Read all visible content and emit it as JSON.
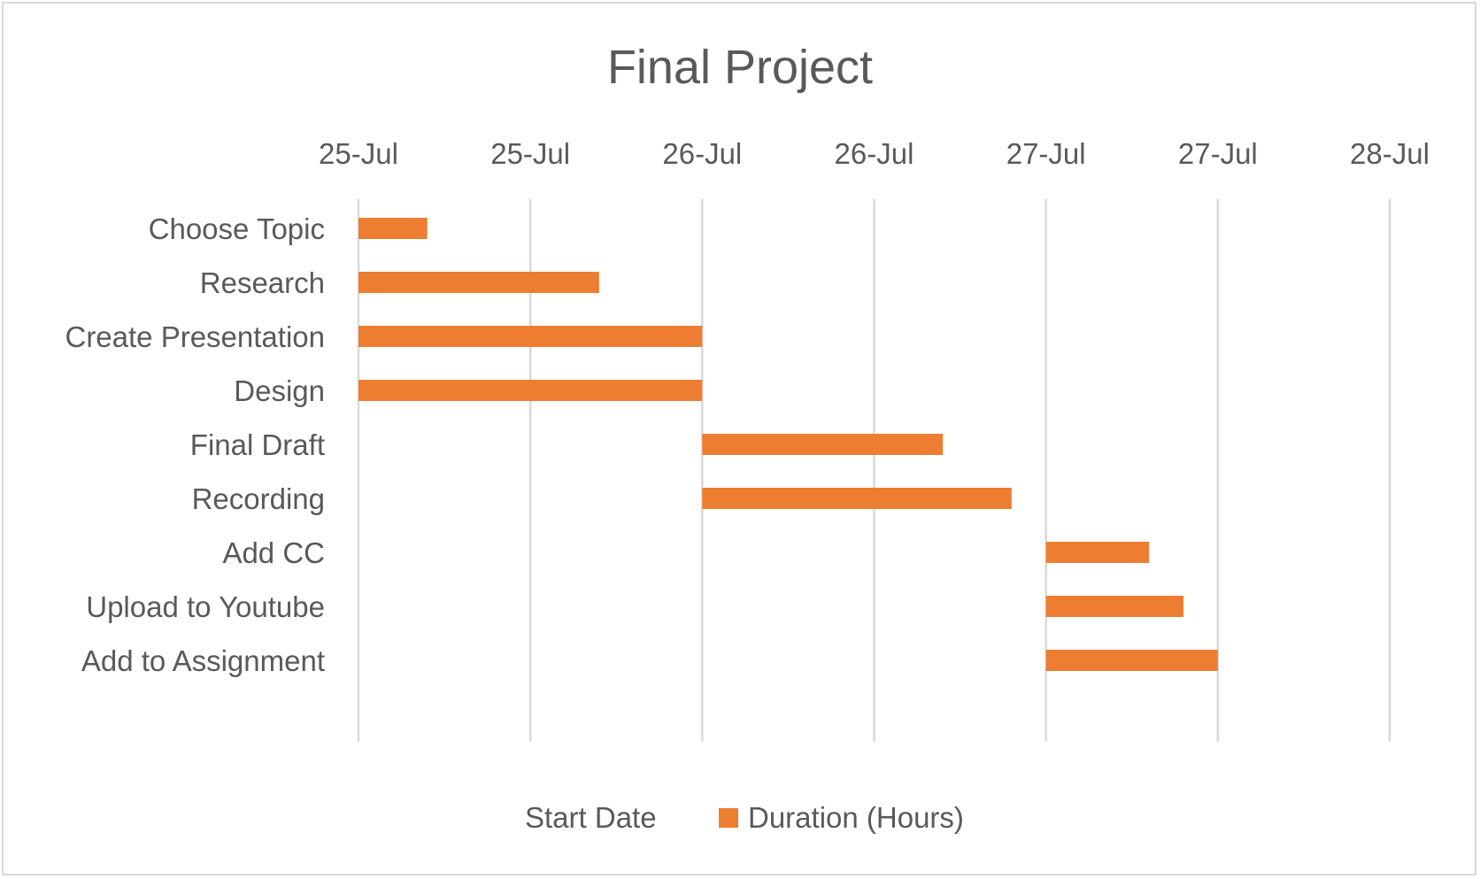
{
  "chart_data": {
    "type": "bar",
    "orientation": "horizontal",
    "stacked": true,
    "title": "Final Project",
    "xlabel": "",
    "ylabel": "",
    "x_axis_position": "top",
    "x_tick_labels": [
      "25-Jul",
      "25-Jul",
      "26-Jul",
      "26-Jul",
      "27-Jul",
      "27-Jul",
      "28-Jul"
    ],
    "xlim": [
      "2020-07-25T00:00",
      "2020-07-28T00:00"
    ],
    "x_tick_step_days": 0.5,
    "grid": true,
    "legend_position": "bottom",
    "categories": [
      "Choose Topic",
      "Research",
      "Create Presentation",
      "Design",
      "Final Draft",
      "Recording",
      "Add CC",
      "Upload to Youtube",
      "Add to Assignment"
    ],
    "series": [
      {
        "name": "Start Date",
        "color": "none",
        "visible": false,
        "values": [
          "2020-07-25T00:00",
          "2020-07-25T00:00",
          "2020-07-25T00:00",
          "2020-07-25T00:00",
          "2020-07-26T00:00",
          "2020-07-26T00:00",
          "2020-07-27T00:00",
          "2020-07-27T00:00",
          "2020-07-27T00:00"
        ]
      },
      {
        "name": "Duration (Hours)",
        "color": "#ed7d31",
        "values": [
          4.8,
          16.8,
          24,
          24,
          16.8,
          21.6,
          7.2,
          9.6,
          12
        ]
      }
    ]
  }
}
